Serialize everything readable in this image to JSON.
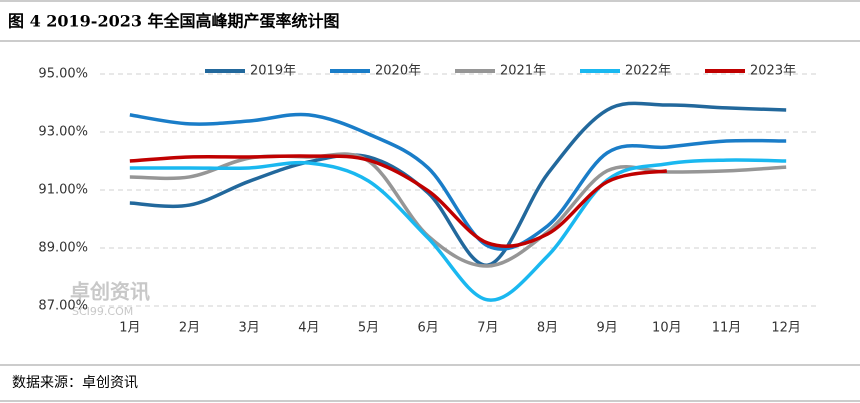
{
  "chart_data": {
    "type": "line",
    "title": "图 4 2019-2023 年全国高峰期产蛋率统计图",
    "source": "数据来源：卓创资讯",
    "watermark": [
      "卓创资讯",
      "SCI99.COM"
    ],
    "categories": [
      "1月",
      "2月",
      "3月",
      "4月",
      "5月",
      "6月",
      "7月",
      "8月",
      "9月",
      "10月",
      "11月",
      "12月"
    ],
    "series": [
      {
        "name": "2019年",
        "color": "#22689c",
        "values": [
          90.55,
          90.48,
          91.3,
          91.97,
          92.14,
          90.9,
          88.41,
          91.55,
          93.76,
          93.93,
          93.83,
          93.76
        ]
      },
      {
        "name": "2020年",
        "color": "#1a7dc8",
        "values": [
          93.59,
          93.28,
          93.38,
          93.59,
          92.93,
          91.76,
          89.07,
          89.76,
          92.28,
          92.48,
          92.69,
          92.69
        ]
      },
      {
        "name": "2021年",
        "color": "#969696",
        "values": [
          91.45,
          91.45,
          92.1,
          92.14,
          92.0,
          89.41,
          88.38,
          89.55,
          91.66,
          91.62,
          91.66,
          91.79
        ]
      },
      {
        "name": "2022年",
        "color": "#1ab8f0",
        "values": [
          91.76,
          91.76,
          91.76,
          91.93,
          91.31,
          89.34,
          87.21,
          88.72,
          91.34,
          91.9,
          92.03,
          92.0
        ]
      },
      {
        "name": "2023年",
        "color": "#c00000",
        "values": [
          92.0,
          92.14,
          92.14,
          92.17,
          92.03,
          90.97,
          89.17,
          89.48,
          91.28,
          91.66,
          null,
          null
        ]
      }
    ],
    "ylim": [
      87,
      95
    ],
    "yticks": [
      {
        "value": 87,
        "label": "87.00%"
      },
      {
        "value": 89,
        "label": "89.00%"
      },
      {
        "value": 91,
        "label": "91.00%"
      },
      {
        "value": 93,
        "label": "93.00%"
      },
      {
        "value": 95,
        "label": "95.00%"
      }
    ],
    "grid": true,
    "legend": "top"
  }
}
